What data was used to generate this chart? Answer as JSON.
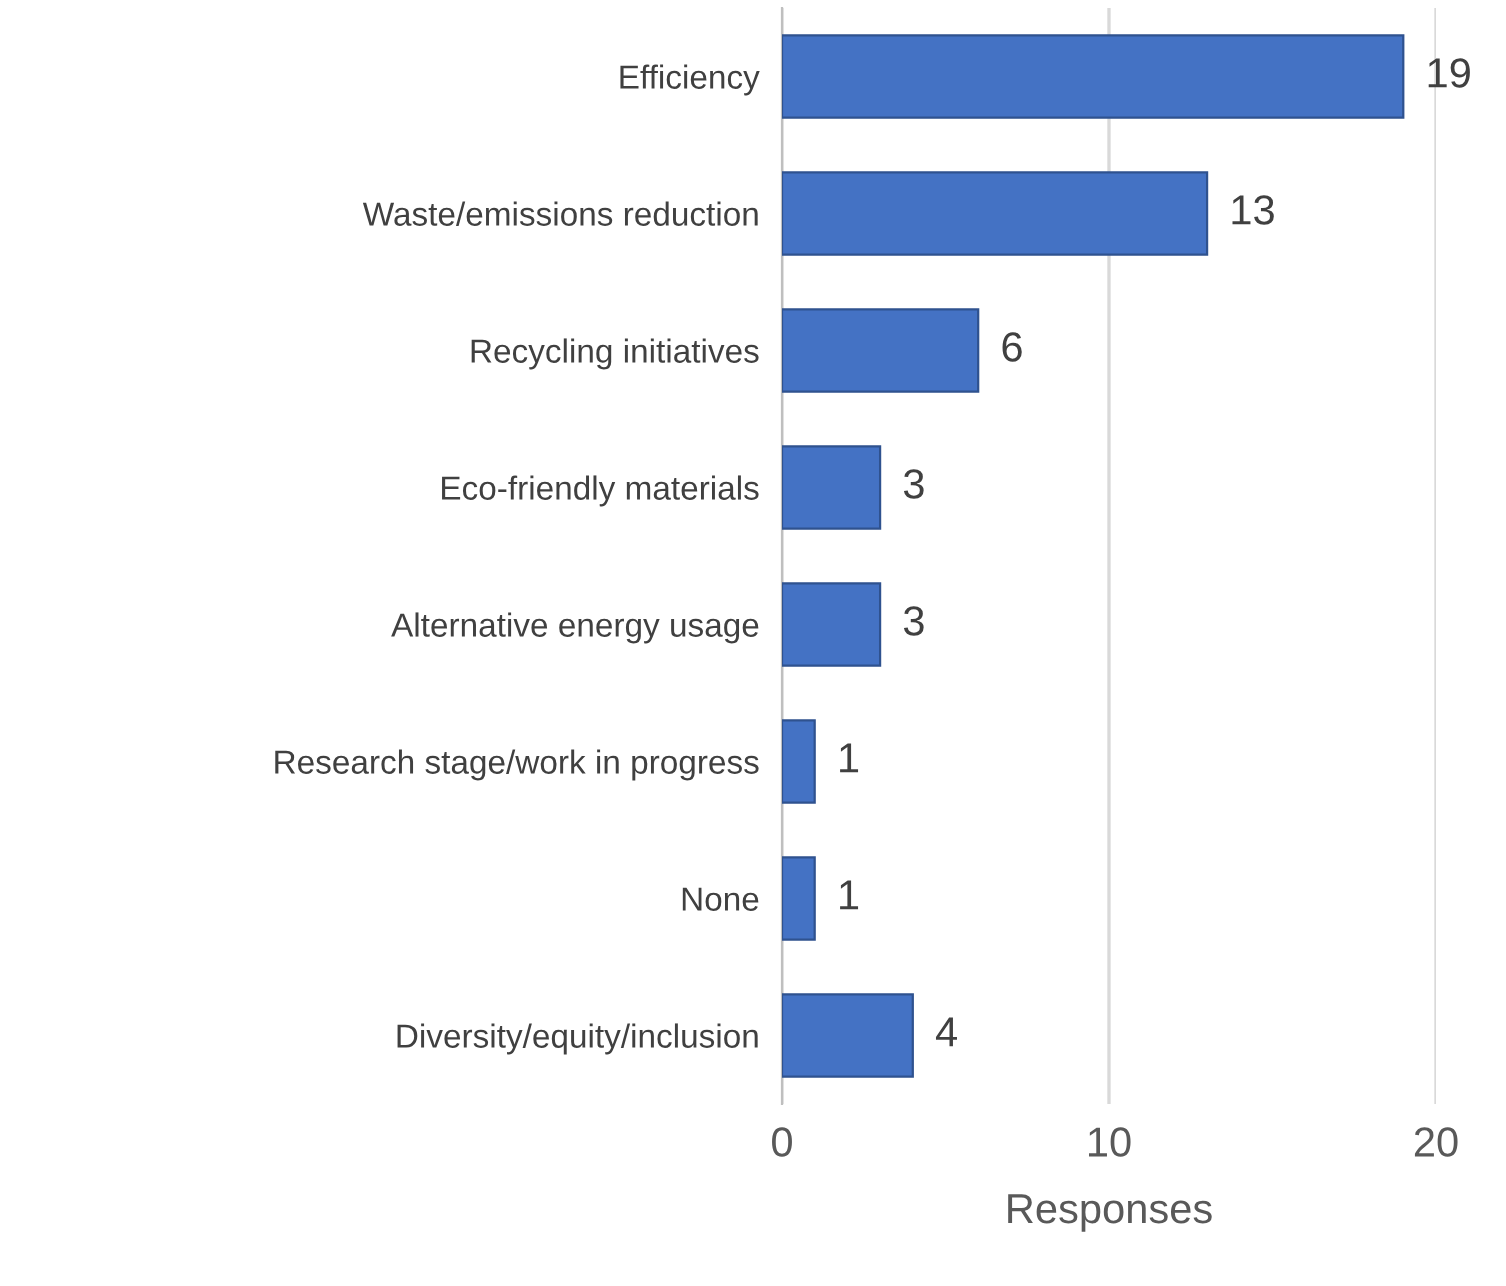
{
  "chart_data": {
    "type": "bar",
    "orientation": "horizontal",
    "xlabel": "Responses",
    "categories": [
      "Efficiency",
      "Waste/emissions reduction",
      "Recycling initiatives",
      "Eco-friendly materials",
      "Alternative energy usage",
      "Research stage/work in progress",
      "None",
      "Diversity/equity/inclusion"
    ],
    "values": [
      19,
      13,
      6,
      3,
      3,
      1,
      1,
      4
    ],
    "color": "#4472c4",
    "xlim": [
      0,
      20
    ],
    "xticks": [
      0,
      10,
      20
    ],
    "grid": "x",
    "data_labels": true
  }
}
